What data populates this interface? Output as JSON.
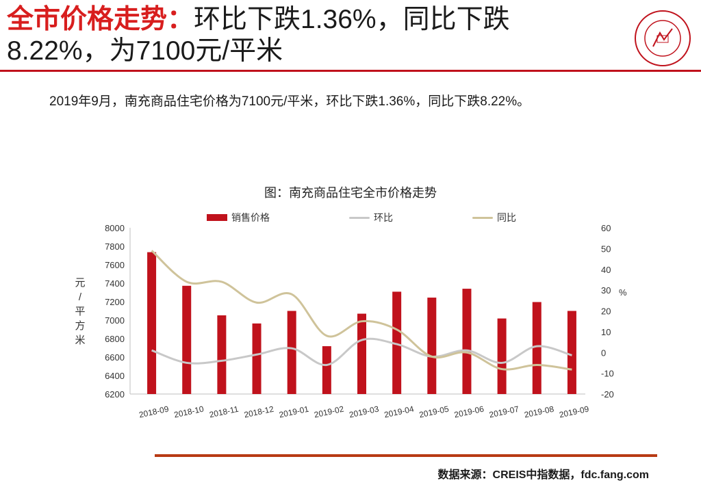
{
  "header": {
    "title_lead": "全市价格走势：",
    "title_rest": "环比下跌1.36%，同比下跌",
    "title_line2": "8.22%，为7100元/平米"
  },
  "summary": "2019年9月，南充商品住宅价格为7100元/平米，环比下跌1.36%，同比下跌8.22%。",
  "footer": {
    "source": "数据来源：CREIS中指数据，fdc.fang.com"
  },
  "colors": {
    "accent": "#d81e1e",
    "bar": "#c0121c",
    "mom_line": "#c8c8c8",
    "yoy_line": "#cfc39a",
    "footer_rule": "#b83a14"
  },
  "chart_data": {
    "type": "bar",
    "title": "图：南充商品住宅全市价格走势",
    "categories": [
      "2018-09",
      "2018-10",
      "2018-11",
      "2018-12",
      "2019-01",
      "2019-02",
      "2019-03",
      "2019-04",
      "2019-05",
      "2019-06",
      "2019-07",
      "2019-08",
      "2019-09"
    ],
    "series": [
      {
        "name": "销售价格",
        "kind": "bar",
        "axis": "left",
        "values": [
          7736,
          7372,
          7052,
          6964,
          7100,
          6718,
          7070,
          7308,
          7244,
          7340,
          7018,
          7196,
          7100
        ]
      },
      {
        "name": "环比",
        "kind": "line",
        "axis": "right",
        "values": [
          1,
          -5,
          -4,
          -1,
          2,
          -6,
          6,
          4,
          -2,
          1,
          -5,
          3,
          -1.36
        ]
      },
      {
        "name": "同比",
        "kind": "line",
        "axis": "right",
        "values": [
          49,
          34,
          34,
          24,
          28,
          8,
          15,
          11,
          -2,
          0,
          -8,
          -6,
          -8.22
        ]
      }
    ],
    "ylabel": "元/平方米",
    "ylabel_right": "%",
    "ylim": [
      6200,
      8000
    ],
    "yticks": [
      6200,
      6400,
      6600,
      6800,
      7000,
      7200,
      7400,
      7600,
      7800,
      8000
    ],
    "ylim_right": [
      -20,
      60
    ],
    "yticks_right": [
      -20,
      -10,
      0,
      10,
      20,
      30,
      40,
      50,
      60
    ],
    "grid": false,
    "legend_position": "top"
  }
}
